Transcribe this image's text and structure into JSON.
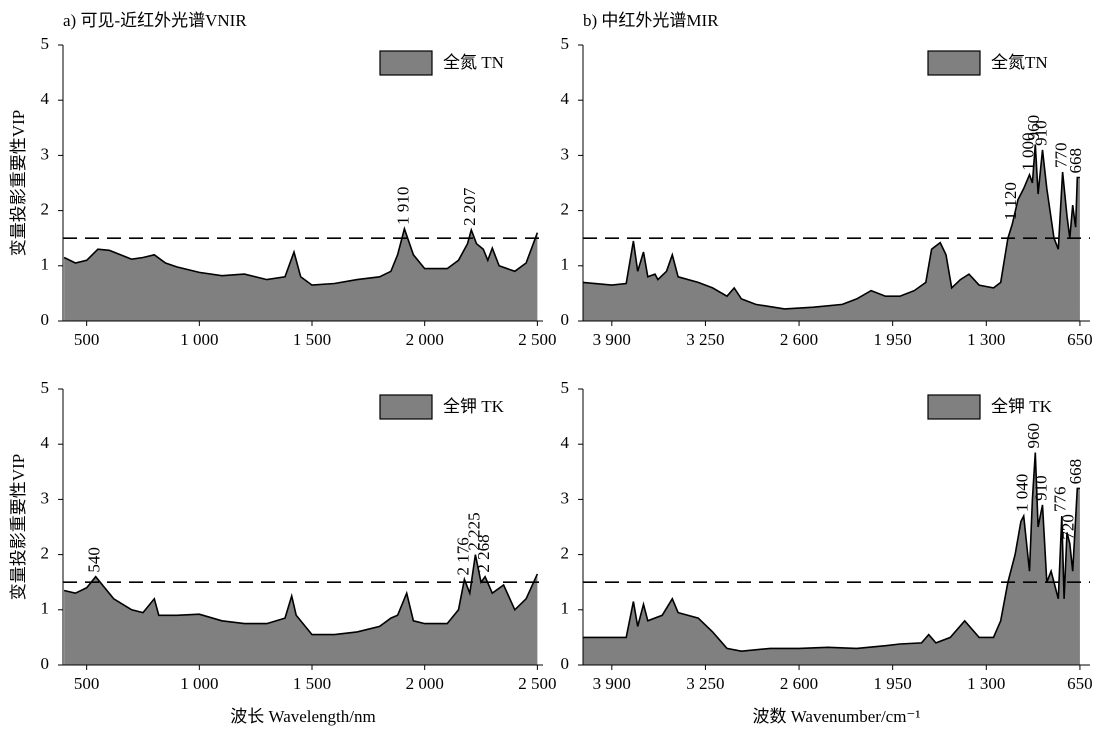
{
  "chart_data": [
    {
      "type": "area",
      "title": "a) 可见-近红外光谱VNIR",
      "y_label": "变量投影重要性VIP",
      "legend": "全氮 TN",
      "color": "#808080",
      "threshold": 1.5,
      "xlim": [
        395,
        2525
      ],
      "ylim": [
        0,
        5
      ],
      "xticks": [
        500,
        {
          "value": 1000,
          "label": "1 000"
        },
        {
          "value": 1500,
          "label": "1 500"
        },
        {
          "value": 2000,
          "label": "2 000"
        },
        {
          "value": 2500,
          "label": "2 500"
        }
      ],
      "yticks": [
        0,
        1,
        2,
        3,
        4,
        5
      ],
      "x": [
        400,
        450,
        500,
        550,
        600,
        650,
        700,
        750,
        800,
        850,
        900,
        1000,
        1100,
        1200,
        1300,
        1380,
        1420,
        1450,
        1500,
        1600,
        1700,
        1800,
        1850,
        1880,
        1910,
        1950,
        2000,
        2100,
        2150,
        2190,
        2207,
        2230,
        2260,
        2280,
        2300,
        2330,
        2400,
        2450,
        2500
      ],
      "values": [
        1.15,
        1.05,
        1.1,
        1.3,
        1.28,
        1.2,
        1.12,
        1.15,
        1.2,
        1.05,
        0.98,
        0.88,
        0.82,
        0.85,
        0.75,
        0.8,
        1.25,
        0.8,
        0.65,
        0.68,
        0.75,
        0.8,
        0.9,
        1.2,
        1.67,
        1.2,
        0.95,
        0.95,
        1.1,
        1.4,
        1.65,
        1.4,
        1.3,
        1.1,
        1.32,
        1.0,
        0.9,
        1.05,
        1.6
      ],
      "annotations": [
        {
          "text": "1 910",
          "x": 1910
        },
        {
          "text": "2 207",
          "x": 2207
        }
      ]
    },
    {
      "type": "area",
      "title": "b) 中红外光谱MIR",
      "legend": "全氮TN",
      "color": "#808080",
      "threshold": 1.5,
      "xlim": [
        4100,
        580
      ],
      "ylim": [
        0,
        5
      ],
      "xticks": [
        {
          "value": 3900,
          "label": "3 900"
        },
        {
          "value": 3250,
          "label": "3 250"
        },
        {
          "value": 2600,
          "label": "2 600"
        },
        {
          "value": 1950,
          "label": "1 950"
        },
        {
          "value": 1300,
          "label": "1 300"
        },
        650
      ],
      "yticks": [
        0,
        1,
        2,
        3,
        4,
        5
      ],
      "x": [
        4100,
        3900,
        3800,
        3750,
        3720,
        3680,
        3650,
        3600,
        3580,
        3520,
        3480,
        3440,
        3300,
        3200,
        3100,
        3050,
        3000,
        2900,
        2700,
        2500,
        2300,
        2200,
        2100,
        2000,
        1900,
        1800,
        1720,
        1680,
        1620,
        1580,
        1540,
        1480,
        1420,
        1350,
        1250,
        1200,
        1150,
        1120,
        1080,
        1040,
        1000,
        980,
        960,
        940,
        910,
        880,
        830,
        800,
        770,
        740,
        720,
        700,
        680,
        668,
        650
      ],
      "values": [
        0.7,
        0.65,
        0.68,
        1.45,
        0.9,
        1.25,
        0.8,
        0.85,
        0.75,
        0.9,
        1.2,
        0.8,
        0.7,
        0.6,
        0.45,
        0.6,
        0.4,
        0.3,
        0.22,
        0.25,
        0.3,
        0.4,
        0.55,
        0.45,
        0.45,
        0.55,
        0.7,
        1.3,
        1.42,
        1.2,
        0.6,
        0.75,
        0.85,
        0.65,
        0.6,
        0.7,
        1.5,
        1.75,
        2.2,
        2.4,
        2.65,
        2.5,
        3.2,
        2.3,
        3.1,
        2.4,
        1.5,
        1.3,
        2.7,
        1.9,
        1.5,
        2.1,
        1.7,
        2.6,
        2.6
      ],
      "annotations": [
        {
          "text": "1 120",
          "x": 1120
        },
        {
          "text": "1 000",
          "x": 1000
        },
        {
          "text": "960",
          "x": 960
        },
        {
          "text": "910",
          "x": 910
        },
        {
          "text": "770",
          "x": 770
        },
        {
          "text": "668",
          "x": 668
        }
      ]
    },
    {
      "type": "area",
      "y_label": "变量投影重要性VIP",
      "x_label": "波长 Wavelength/nm",
      "legend": "全钾 TK",
      "color": "#808080",
      "threshold": 1.5,
      "xlim": [
        395,
        2525
      ],
      "ylim": [
        0,
        5
      ],
      "xticks": [
        500,
        {
          "value": 1000,
          "label": "1 000"
        },
        {
          "value": 1500,
          "label": "1 500"
        },
        {
          "value": 2000,
          "label": "2 000"
        },
        {
          "value": 2500,
          "label": "2 500"
        }
      ],
      "yticks": [
        0,
        1,
        2,
        3,
        4,
        5
      ],
      "x": [
        400,
        450,
        500,
        540,
        580,
        620,
        700,
        750,
        800,
        820,
        900,
        1000,
        1100,
        1200,
        1300,
        1380,
        1410,
        1430,
        1460,
        1500,
        1600,
        1700,
        1800,
        1850,
        1880,
        1920,
        1950,
        2000,
        2100,
        2150,
        2176,
        2200,
        2225,
        2250,
        2268,
        2300,
        2350,
        2400,
        2450,
        2500
      ],
      "values": [
        1.35,
        1.3,
        1.4,
        1.6,
        1.4,
        1.2,
        1.0,
        0.95,
        1.2,
        0.9,
        0.9,
        0.92,
        0.8,
        0.75,
        0.75,
        0.85,
        1.25,
        0.9,
        0.75,
        0.55,
        0.55,
        0.6,
        0.7,
        0.85,
        0.9,
        1.3,
        0.8,
        0.75,
        0.75,
        1.0,
        1.55,
        1.3,
        2.0,
        1.5,
        1.6,
        1.3,
        1.45,
        1.0,
        1.2,
        1.65
      ],
      "annotations": [
        {
          "text": "540",
          "x": 540
        },
        {
          "text": "2 176",
          "x": 2176
        },
        {
          "text": "2 225",
          "x": 2225
        },
        {
          "text": "2 268",
          "x": 2268
        }
      ]
    },
    {
      "type": "area",
      "x_label": "波数 Wavenumber/cm⁻¹",
      "legend": "全钾 TK",
      "color": "#808080",
      "threshold": 1.5,
      "xlim": [
        4100,
        580
      ],
      "ylim": [
        0,
        5
      ],
      "xticks": [
        {
          "value": 3900,
          "label": "3 900"
        },
        {
          "value": 3250,
          "label": "3 250"
        },
        {
          "value": 2600,
          "label": "2 600"
        },
        {
          "value": 1950,
          "label": "1 950"
        },
        {
          "value": 1300,
          "label": "1 300"
        },
        650
      ],
      "yticks": [
        0,
        1,
        2,
        3,
        4,
        5
      ],
      "x": [
        4100,
        3900,
        3800,
        3750,
        3720,
        3680,
        3650,
        3550,
        3480,
        3440,
        3300,
        3200,
        3100,
        3000,
        2800,
        2600,
        2400,
        2200,
        2000,
        1900,
        1750,
        1700,
        1650,
        1550,
        1450,
        1350,
        1250,
        1200,
        1150,
        1100,
        1060,
        1040,
        1000,
        980,
        960,
        940,
        910,
        880,
        850,
        800,
        776,
        760,
        740,
        720,
        700,
        668,
        650
      ],
      "values": [
        0.5,
        0.5,
        0.5,
        1.15,
        0.7,
        1.1,
        0.8,
        0.9,
        1.2,
        0.95,
        0.85,
        0.6,
        0.3,
        0.25,
        0.3,
        0.3,
        0.32,
        0.3,
        0.35,
        0.38,
        0.4,
        0.55,
        0.4,
        0.5,
        0.8,
        0.5,
        0.5,
        0.8,
        1.5,
        2.0,
        2.6,
        2.7,
        1.7,
        3.0,
        3.85,
        2.5,
        2.9,
        1.5,
        1.7,
        1.2,
        2.7,
        1.2,
        2.4,
        2.2,
        1.7,
        3.2,
        3.2
      ],
      "annotations": [
        {
          "text": "1 040",
          "x": 1040
        },
        {
          "text": "960",
          "x": 960
        },
        {
          "text": "910",
          "x": 910
        },
        {
          "text": "776",
          "x": 776
        },
        {
          "text": "720",
          "x": 720
        },
        {
          "text": "668",
          "x": 668
        }
      ]
    }
  ]
}
